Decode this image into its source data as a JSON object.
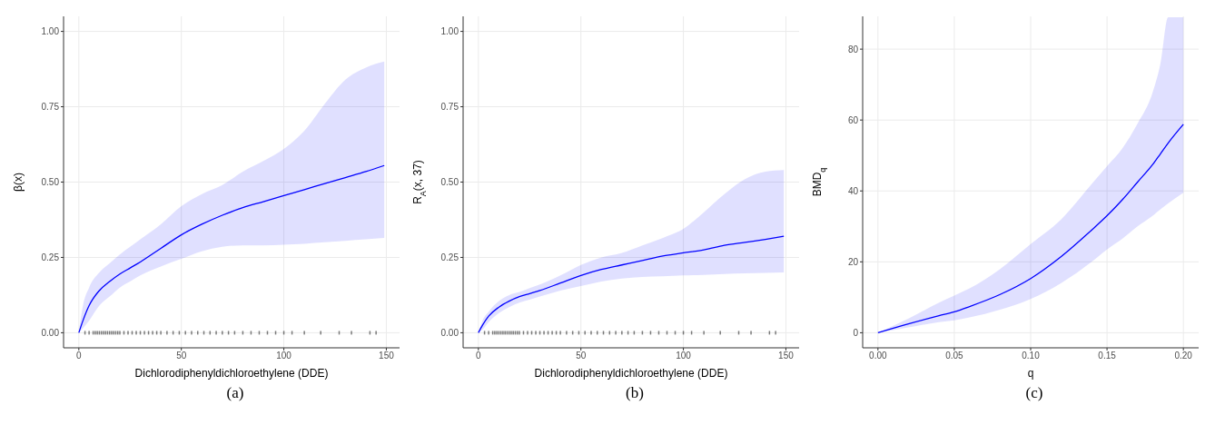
{
  "chart_data": [
    {
      "type": "line",
      "xlabel": "Dichlorodiphenyldichloroethylene (DDE)",
      "ylabel": "β(x)",
      "annotations": [
        "(a)"
      ],
      "xlim": [
        -7.45,
        156.45
      ],
      "ylim": [
        -0.05,
        1.05
      ],
      "xticks": [
        0,
        50,
        100,
        150
      ],
      "yticks": [
        {
          "value": 0,
          "label": "0.00"
        },
        {
          "value": 0.25,
          "label": "0.25"
        },
        {
          "value": 0.5,
          "label": "0.50"
        },
        {
          "value": 0.75,
          "label": "0.75"
        },
        {
          "value": 1,
          "label": "1.00"
        }
      ],
      "grid": true,
      "x": [
        0,
        2,
        5,
        10,
        15,
        20,
        25,
        30,
        40,
        50,
        60,
        70,
        80,
        90,
        100,
        110,
        120,
        130,
        140,
        149
      ],
      "series": [
        {
          "color": "#0000ff",
          "values": [
            0,
            0.04,
            0.09,
            0.14,
            0.17,
            0.195,
            0.215,
            0.235,
            0.28,
            0.325,
            0.36,
            0.39,
            0.415,
            0.435,
            0.455,
            0.475,
            0.495,
            0.515,
            0.535,
            0.555
          ],
          "upper": [
            0,
            0.09,
            0.15,
            0.2,
            0.23,
            0.26,
            0.285,
            0.31,
            0.36,
            0.42,
            0.46,
            0.49,
            0.535,
            0.57,
            0.61,
            0.67,
            0.76,
            0.84,
            0.88,
            0.9
          ],
          "lower": [
            0,
            0.015,
            0.04,
            0.09,
            0.12,
            0.15,
            0.17,
            0.19,
            0.22,
            0.245,
            0.27,
            0.285,
            0.29,
            0.29,
            0.292,
            0.295,
            0.3,
            0.305,
            0.31,
            0.315
          ]
        },
        {
          "type": "scatter",
          "color": "#000000",
          "x": [
            3,
            5,
            7,
            8,
            9,
            10,
            11,
            12,
            13,
            14,
            15,
            16,
            17,
            18,
            19,
            20,
            22,
            24,
            26,
            28,
            30,
            32,
            34,
            36,
            38,
            40,
            43,
            46,
            49,
            52,
            55,
            58,
            61,
            64,
            67,
            70,
            73,
            76,
            80,
            84,
            88,
            92,
            96,
            100,
            104,
            110,
            118,
            127,
            133,
            142,
            145
          ],
          "values": [
            0,
            0,
            0,
            0,
            0,
            0,
            0,
            0,
            0,
            0,
            0,
            0,
            0,
            0,
            0,
            0,
            0,
            0,
            0,
            0,
            0,
            0,
            0,
            0,
            0,
            0,
            0,
            0,
            0,
            0,
            0,
            0,
            0,
            0,
            0,
            0,
            0,
            0,
            0,
            0,
            0,
            0,
            0,
            0,
            0,
            0,
            0,
            0,
            0,
            0,
            0
          ]
        }
      ]
    },
    {
      "type": "line",
      "xlabel": "Dichlorodiphenyldichloroethylene (DDE)",
      "ylabel": "R$_{A}$(x, 37)",
      "annotations": [
        "(b)"
      ],
      "xlim": [
        -7.45,
        156.45
      ],
      "ylim": [
        -0.05,
        1.05
      ],
      "xticks": [
        0,
        50,
        100,
        150
      ],
      "yticks": [
        {
          "value": 0,
          "label": "0.00"
        },
        {
          "value": 0.25,
          "label": "0.25"
        },
        {
          "value": 0.5,
          "label": "0.50"
        },
        {
          "value": 0.75,
          "label": "0.75"
        },
        {
          "value": 1,
          "label": "1.00"
        }
      ],
      "grid": true,
      "x": [
        0,
        2,
        5,
        10,
        15,
        20,
        25,
        30,
        40,
        50,
        60,
        70,
        80,
        90,
        100,
        110,
        120,
        130,
        140,
        149
      ],
      "series": [
        {
          "color": "#0000ff",
          "values": [
            0,
            0.025,
            0.055,
            0.085,
            0.105,
            0.12,
            0.13,
            0.14,
            0.165,
            0.19,
            0.21,
            0.225,
            0.24,
            0.255,
            0.265,
            0.275,
            0.29,
            0.3,
            0.31,
            0.32
          ],
          "upper": [
            0,
            0.04,
            0.07,
            0.105,
            0.125,
            0.135,
            0.148,
            0.16,
            0.19,
            0.225,
            0.25,
            0.265,
            0.29,
            0.315,
            0.345,
            0.4,
            0.46,
            0.51,
            0.535,
            0.54
          ],
          "lower": [
            0,
            0.01,
            0.035,
            0.065,
            0.085,
            0.1,
            0.11,
            0.12,
            0.14,
            0.155,
            0.17,
            0.18,
            0.185,
            0.187,
            0.19,
            0.192,
            0.195,
            0.197,
            0.199,
            0.2
          ]
        },
        {
          "type": "scatter",
          "color": "#000000",
          "x": [
            3,
            5,
            7,
            8,
            9,
            10,
            11,
            12,
            13,
            14,
            15,
            16,
            17,
            18,
            19,
            20,
            22,
            24,
            26,
            28,
            30,
            32,
            34,
            36,
            38,
            40,
            43,
            46,
            49,
            52,
            55,
            58,
            61,
            64,
            67,
            70,
            73,
            76,
            80,
            84,
            88,
            92,
            96,
            100,
            104,
            110,
            118,
            127,
            133,
            142,
            145
          ],
          "values": [
            0,
            0,
            0,
            0,
            0,
            0,
            0,
            0,
            0,
            0,
            0,
            0,
            0,
            0,
            0,
            0,
            0,
            0,
            0,
            0,
            0,
            0,
            0,
            0,
            0,
            0,
            0,
            0,
            0,
            0,
            0,
            0,
            0,
            0,
            0,
            0,
            0,
            0,
            0,
            0,
            0,
            0,
            0,
            0,
            0,
            0,
            0,
            0,
            0,
            0,
            0
          ]
        }
      ]
    },
    {
      "type": "line",
      "xlabel": "q",
      "ylabel": "BMD$_{q}$",
      "annotations": [
        "(c)"
      ],
      "xlim": [
        -0.01,
        0.21
      ],
      "ylim": [
        -4.25,
        89.25
      ],
      "xticks": [
        {
          "value": 0,
          "label": "0.00"
        },
        {
          "value": 0.05,
          "label": "0.05"
        },
        {
          "value": 0.1,
          "label": "0.10"
        },
        {
          "value": 0.15,
          "label": "0.15"
        },
        {
          "value": 0.2,
          "label": "0.20"
        }
      ],
      "yticks": [
        0,
        20,
        40,
        60,
        80
      ],
      "grid": true,
      "x": [
        0,
        0.02,
        0.04,
        0.05,
        0.06,
        0.08,
        0.1,
        0.12,
        0.14,
        0.15,
        0.16,
        0.17,
        0.18,
        0.185,
        0.19,
        0.2
      ],
      "series": [
        {
          "color": "#0000ff",
          "values": [
            0,
            2.5,
            4.8,
            5.9,
            7.4,
            10.8,
            15.3,
            21.5,
            29,
            33,
            37.5,
            42.5,
            47.5,
            50.5,
            53.5,
            58.8
          ],
          "upper": [
            0,
            4,
            8.5,
            10.5,
            12.5,
            18,
            25,
            32,
            42,
            47,
            52,
            59,
            68,
            76,
            89,
            89
          ],
          "lower": [
            0,
            1.5,
            3,
            3.5,
            4.3,
            6.5,
            9.5,
            14,
            20,
            23.5,
            26.5,
            30,
            33,
            34.8,
            36.5,
            39.5
          ]
        }
      ]
    }
  ]
}
